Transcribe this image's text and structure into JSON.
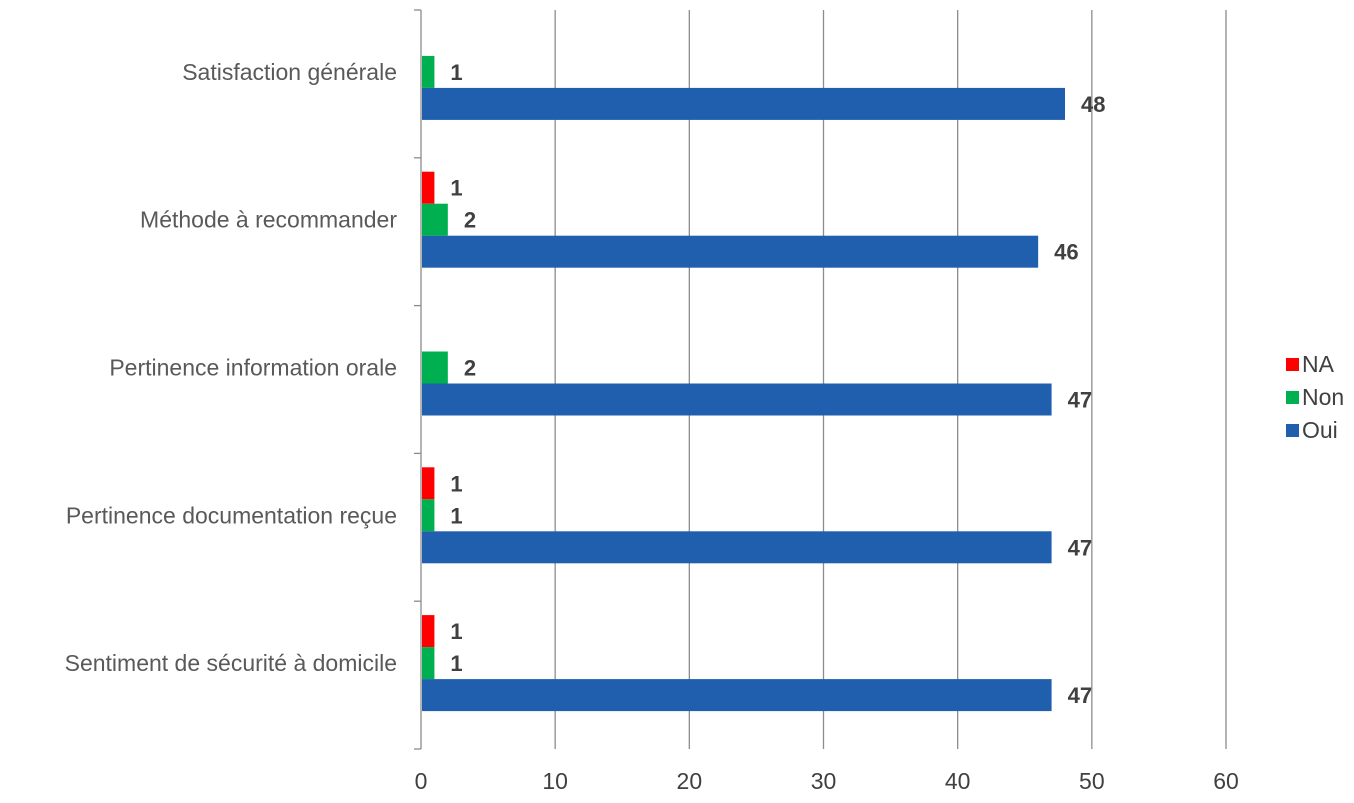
{
  "chart_data": {
    "type": "bar",
    "orientation": "horizontal",
    "categories": [
      "Satisfaction générale",
      "Méthode à recommander",
      "Pertinence information orale",
      "Pertinence documentation reçue",
      "Sentiment de sécurité à domicile"
    ],
    "series": [
      {
        "name": "NA",
        "color": "#ff0000",
        "values": [
          null,
          1,
          null,
          1,
          1
        ]
      },
      {
        "name": "Non",
        "color": "#00b050",
        "values": [
          1,
          2,
          2,
          1,
          1
        ]
      },
      {
        "name": "Oui",
        "color": "#1f5fad",
        "values": [
          48,
          46,
          47,
          47,
          47
        ]
      }
    ],
    "xlim": [
      0,
      60
    ],
    "xticks": [
      0,
      10,
      20,
      30,
      40,
      50,
      60
    ],
    "grid": true,
    "legend": "right",
    "title": "",
    "xlabel": "",
    "ylabel": ""
  }
}
